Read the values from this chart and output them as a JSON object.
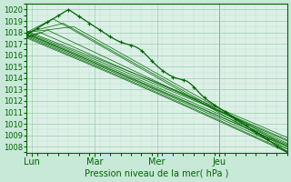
{
  "xlabel": "Pression niveau de la mer( hPa )",
  "ylim": [
    1007.5,
    1020.5
  ],
  "yticks": [
    1008,
    1009,
    1010,
    1011,
    1012,
    1013,
    1014,
    1015,
    1016,
    1017,
    1018,
    1019,
    1020
  ],
  "xlim": [
    0,
    100
  ],
  "xtick_positions": [
    2,
    26,
    50,
    74
  ],
  "xtick_labels": [
    "Lun",
    "Mar",
    "Mer",
    "Jeu"
  ],
  "vline_x": 74,
  "bg_color": "#c8e8d8",
  "grid_major_color": "#99ccaa",
  "grid_minor_color": "#b8ddc8",
  "line_color": "#006600",
  "plot_bg": "#ddf0e8",
  "xlabel_fontsize": 7,
  "ytick_fontsize": 6,
  "xtick_fontsize": 7
}
